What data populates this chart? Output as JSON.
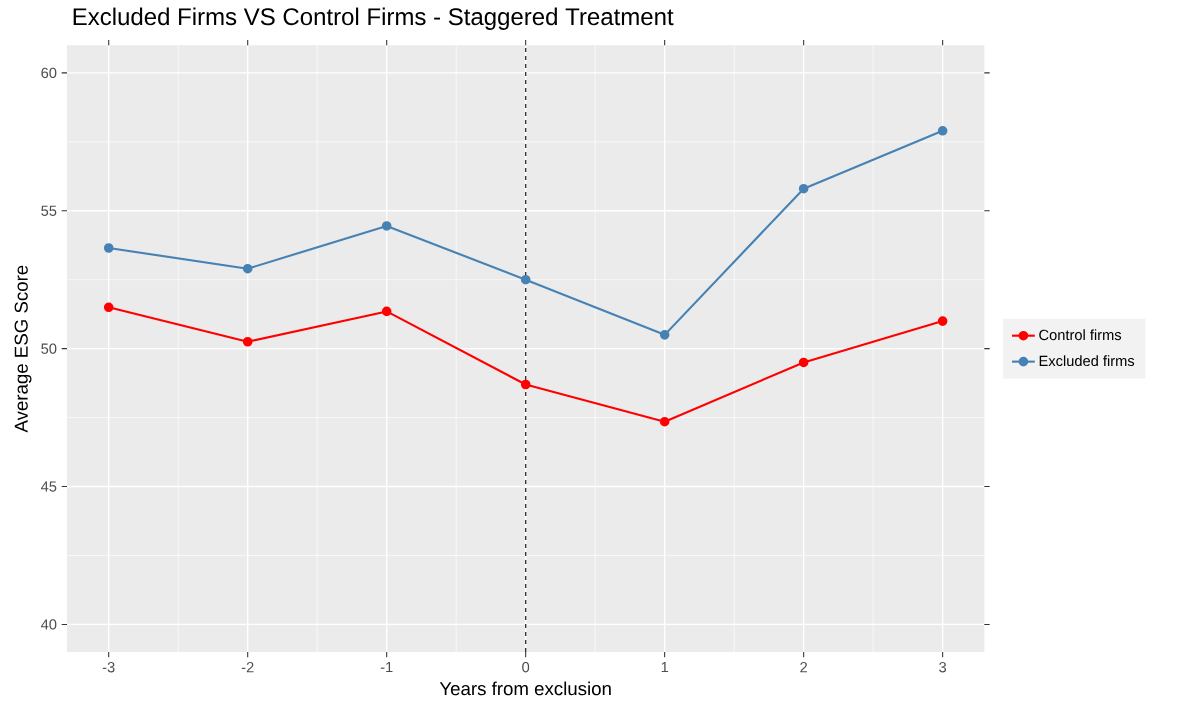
{
  "chart_data": {
    "type": "line",
    "title": "Excluded Firms VS Control Firms - Staggered Treatment",
    "xlabel": "Years from exclusion",
    "ylabel": "Average ESG Score",
    "x": [
      -3,
      -2,
      -1,
      0,
      1,
      2,
      3
    ],
    "series": [
      {
        "name": "Control firms",
        "color": "#ff0000",
        "values": [
          51.5,
          50.25,
          51.35,
          48.7,
          47.35,
          49.5,
          51.0
        ]
      },
      {
        "name": "Excluded firms",
        "color": "#4682b4",
        "values": [
          53.65,
          52.9,
          54.45,
          52.5,
          50.5,
          55.8,
          57.9
        ]
      }
    ],
    "xlim": [
      -3.3,
      3.3
    ],
    "ylim": [
      39,
      61
    ],
    "xticks": [
      -3,
      -2,
      -1,
      0,
      1,
      2,
      3
    ],
    "yticks": [
      40,
      45,
      50,
      55,
      60
    ],
    "ref_lines": [
      {
        "axis": "x",
        "value": 0,
        "color": "#333333",
        "line_style": "dashed"
      }
    ],
    "grid": true,
    "legend": "right",
    "marker": "circle",
    "line_style": "solid"
  }
}
